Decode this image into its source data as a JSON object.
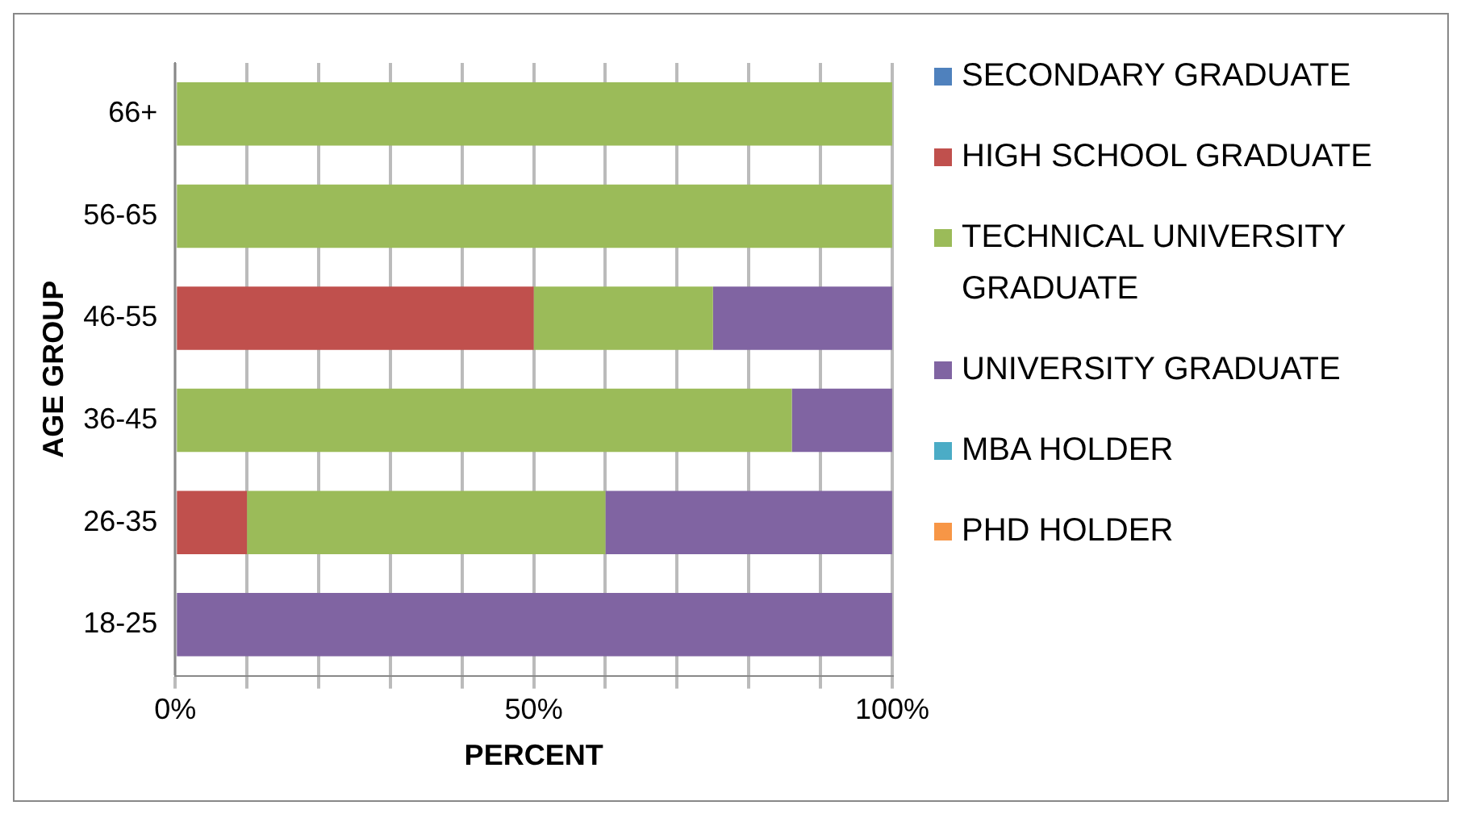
{
  "chart_data": {
    "type": "bar",
    "orientation": "horizontal",
    "stacked": true,
    "xlabel": "PERCENT",
    "ylabel": "AGE GROUP",
    "categories": [
      "66+",
      "56-65",
      "46-55",
      "36-45",
      "26-35",
      "18-25"
    ],
    "series": [
      {
        "name": "SECONDARY GRADUATE",
        "color": "#4f81bd",
        "values": [
          0,
          0,
          0,
          0,
          0,
          0
        ]
      },
      {
        "name": "HIGH SCHOOL GRADUATE",
        "color": "#c0504d",
        "values": [
          0,
          0,
          50,
          0,
          10,
          0
        ]
      },
      {
        "name": "TECHNICAL UNIVERSITY GRADUATE",
        "color": "#9bbb59",
        "values": [
          100,
          100,
          25,
          86,
          50,
          0
        ]
      },
      {
        "name": "UNIVERSITY GRADUATE",
        "color": "#8064a2",
        "values": [
          0,
          0,
          25,
          14,
          40,
          100
        ]
      },
      {
        "name": "MBA HOLDER",
        "color": "#4bacc6",
        "values": [
          0,
          0,
          0,
          0,
          0,
          0
        ]
      },
      {
        "name": "PHD HOLDER",
        "color": "#f79646",
        "values": [
          0,
          0,
          0,
          0,
          0,
          0
        ]
      }
    ],
    "xlim": [
      0,
      100
    ],
    "xticks": [
      {
        "value": 0,
        "label": "0%"
      },
      {
        "value": 10,
        "label": null
      },
      {
        "value": 20,
        "label": null
      },
      {
        "value": 30,
        "label": null
      },
      {
        "value": 40,
        "label": null
      },
      {
        "value": 50,
        "label": "50%"
      },
      {
        "value": 60,
        "label": null
      },
      {
        "value": 70,
        "label": null
      },
      {
        "value": 80,
        "label": null
      },
      {
        "value": 90,
        "label": null
      },
      {
        "value": 100,
        "label": "100%"
      }
    ],
    "grid": "x",
    "legend": "right"
  }
}
